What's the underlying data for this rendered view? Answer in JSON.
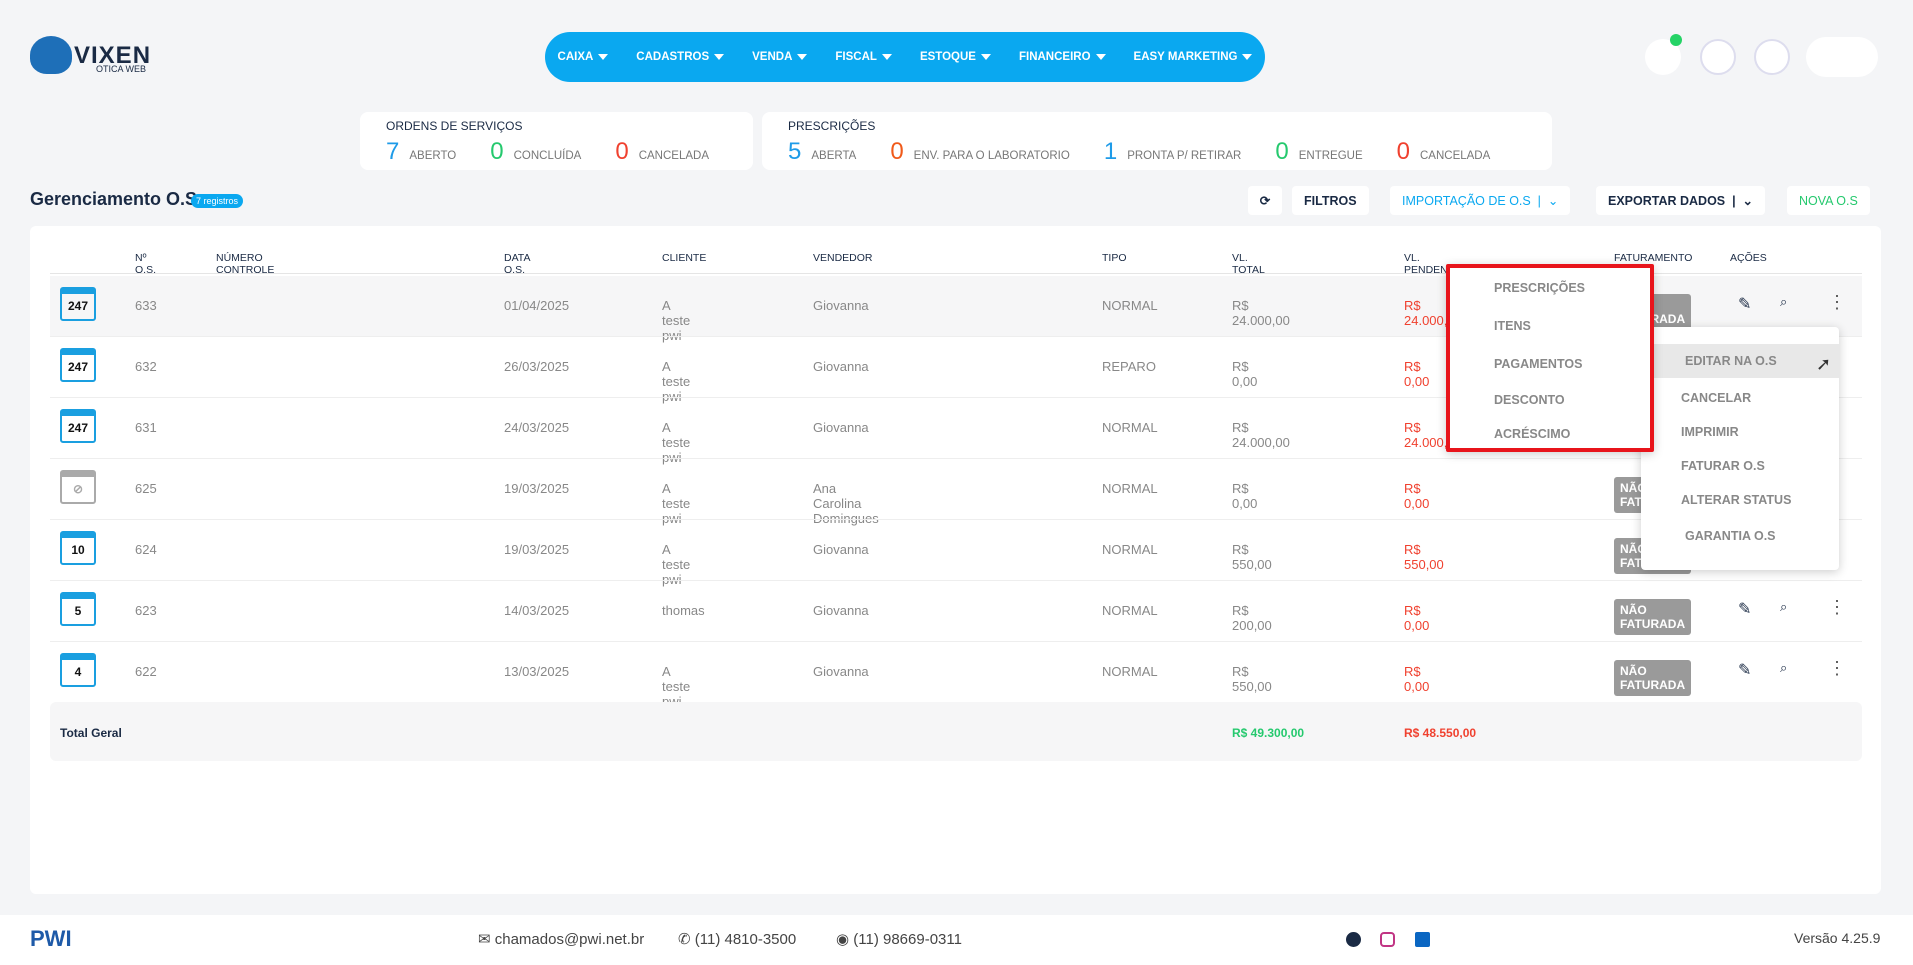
{
  "header": {
    "logo": "VIXEN",
    "logo_sub": "OTICA WEB",
    "nav": [
      "CAIXA",
      "CADASTROS",
      "VENDA",
      "FISCAL",
      "ESTOQUE",
      "FINANCEIRO",
      "EASY MARKETING"
    ]
  },
  "summary": {
    "os": {
      "title": "ORDENS DE SERVIÇOS",
      "items": [
        {
          "count": 7,
          "label": "ABERTO"
        },
        {
          "count": 0,
          "label": "CONCLUÍDA"
        },
        {
          "count": 0,
          "label": "CANCELADA"
        }
      ]
    },
    "prescricoes": {
      "title": "PRESCRIÇÕES",
      "items": [
        {
          "count": 5,
          "label": "ABERTA"
        },
        {
          "count": 0,
          "label": "ENV. PARA O LABORATORIO"
        },
        {
          "count": 1,
          "label": "PRONTA P/ RETIRAR"
        },
        {
          "count": 0,
          "label": "ENTREGUE"
        },
        {
          "count": 0,
          "label": "CANCELADA"
        }
      ]
    }
  },
  "page": {
    "title": "Gerenciamento O.S",
    "badge": "7 registros",
    "buttons": {
      "filtros": "FILTROS",
      "importacao": "IMPORTAÇÃO DE O.S",
      "exportar": "EXPORTAR DADOS",
      "nova": "NOVA O.S"
    }
  },
  "table": {
    "columns": [
      "Nº O.S.",
      "NÚMERO CONTROLE INTERNO",
      "DATA O.S.",
      "CLIENTE",
      "VENDEDOR",
      "TIPO",
      "VL. TOTAL",
      "VL. PENDENTE",
      "FATURAMENTO FISCAL",
      "AÇÕES"
    ],
    "rows": [
      {
        "icon": "247",
        "numero": "633",
        "data": "01/04/2025",
        "cliente": "A teste pwi",
        "vendedor": "Giovanna",
        "tipo": "NORMAL",
        "total": "R$ 24.000,00",
        "pendente": "R$ 24.000,00",
        "fiscal": "NÃO FATURADA"
      },
      {
        "icon": "247",
        "numero": "632",
        "data": "26/03/2025",
        "cliente": "A teste pwi",
        "vendedor": "Giovanna",
        "tipo": "REPARO",
        "total": "R$ 0,00",
        "pendente": "R$ 0,00"
      },
      {
        "icon": "247",
        "numero": "631",
        "data": "24/03/2025",
        "cliente": "A teste pwi",
        "vendedor": "Giovanna",
        "tipo": "NORMAL",
        "total": "R$ 24.000,00",
        "pendente": "R$ 24.000,00"
      },
      {
        "numero": "625",
        "data": "19/03/2025",
        "cliente": "A teste pwi",
        "vendedor": "Ana Carolina Domingues",
        "tipo": "NORMAL",
        "total": "R$ 0,00",
        "pendente": "R$ 0,00",
        "fiscal": "NÃO FATURADA"
      },
      {
        "icon": "10",
        "numero": "624",
        "data": "19/03/2025",
        "cliente": "A teste pwi",
        "vendedor": "Giovanna",
        "tipo": "NORMAL",
        "total": "R$ 550,00",
        "pendente": "R$ 550,00",
        "fiscal": "NÃO FATURADA"
      },
      {
        "icon": "5",
        "numero": "623",
        "data": "14/03/2025",
        "cliente": "thomas",
        "vendedor": "Giovanna",
        "tipo": "NORMAL",
        "total": "R$ 200,00",
        "pendente": "R$ 0,00",
        "fiscal": "NÃO FATURADA"
      },
      {
        "icon": "4",
        "numero": "622",
        "data": "13/03/2025",
        "cliente": "A teste pwi",
        "vendedor": "Giovanna",
        "tipo": "NORMAL",
        "total": "R$ 550,00",
        "pendente": "R$ 0,00",
        "fiscal": "NÃO FATURADA"
      }
    ],
    "total": {
      "label": "Total Geral",
      "total": "R$ 49.300,00",
      "pendente": "R$ 48.550,00"
    }
  },
  "menu_left": [
    "PRESCRIÇÕES",
    "ITENS",
    "PAGAMENTOS",
    "DESCONTO",
    "ACRÉSCIMO"
  ],
  "menu_right": [
    "EDITAR NA O.S",
    "CANCELAR",
    "IMPRIMIR",
    "FATURAR O.S",
    "ALTERAR STATUS",
    "GARANTIA O.S"
  ],
  "footer": {
    "logo": "PWI",
    "email": "chamados@pwi.net.br",
    "phone": "(11) 4810-3500",
    "whatsapp": "(11) 98669-0311",
    "version": "Versão 4.25.9"
  }
}
